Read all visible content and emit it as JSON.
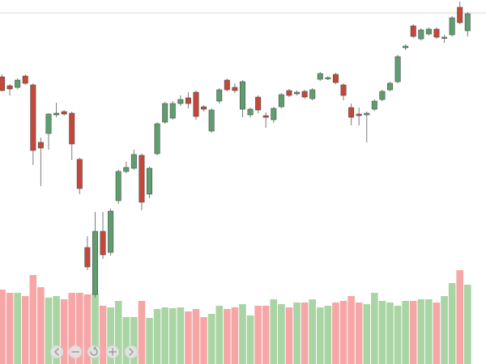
{
  "chart_data": {
    "type": "candlestick",
    "open": [
      355,
      344,
      342,
      356,
      345,
      274,
      285,
      308,
      312,
      310,
      253,
      144,
      86,
      164,
      138,
      202,
      238,
      242,
      258,
      210,
      260,
      299,
      304,
      322,
      329,
      336,
      318,
      288,
      325,
      351,
      342,
      315,
      308,
      330,
      307,
      302,
      318,
      338,
      334,
      337,
      328,
      352,
      353,
      358,
      345,
      317,
      309,
      308,
      315,
      327,
      339,
      349,
      391,
      418,
      402,
      408,
      414,
      403,
      407,
      441,
      412
    ],
    "high": [
      358,
      346,
      353,
      358,
      347,
      280,
      310,
      323,
      314,
      312,
      255,
      158,
      188,
      188,
      192,
      240,
      250,
      265,
      260,
      244,
      299,
      324,
      325,
      332,
      336,
      338,
      320,
      316,
      341,
      353,
      347,
      351,
      317,
      332,
      311,
      318,
      335,
      340,
      338,
      339,
      341,
      361,
      356,
      360,
      347,
      322,
      317,
      312,
      327,
      339,
      349,
      382,
      395,
      420,
      415,
      416,
      416,
      407,
      430,
      448,
      435
    ],
    "low": [
      337,
      332,
      340,
      345,
      246,
      220,
      265,
      305,
      307,
      252,
      210,
      116,
      82,
      130,
      134,
      198,
      236,
      240,
      190,
      205,
      258,
      297,
      302,
      319,
      316,
      302,
      312,
      286,
      322,
      337,
      335,
      305,
      305,
      310,
      292,
      298,
      316,
      330,
      332,
      328,
      326,
      350,
      351,
      346,
      326,
      295,
      295,
      274,
      313,
      325,
      337,
      347,
      388,
      403,
      400,
      406,
      402,
      397,
      405,
      420,
      405
    ],
    "close": [
      338,
      340,
      351,
      347,
      264,
      267,
      309,
      310,
      309,
      272,
      217,
      120,
      164,
      135,
      189,
      238,
      243,
      259,
      200,
      242,
      297,
      322,
      322,
      327,
      322,
      306,
      315,
      314,
      339,
      339,
      338,
      349,
      315,
      314,
      305,
      316,
      333,
      332,
      336,
      330,
      339,
      359,
      354,
      348,
      332,
      305,
      307,
      310,
      325,
      337,
      347,
      380,
      393,
      405,
      413,
      414,
      404,
      404,
      428,
      422,
      433
    ],
    "volume": [
      92,
      88,
      88,
      84,
      110,
      95,
      82,
      84,
      80,
      88,
      88,
      86,
      87,
      72,
      70,
      78,
      58,
      58,
      78,
      57,
      68,
      70,
      69,
      70,
      65,
      68,
      58,
      62,
      72,
      68,
      70,
      74,
      60,
      72,
      72,
      80,
      74,
      70,
      76,
      76,
      80,
      70,
      72,
      76,
      78,
      84,
      76,
      74,
      88,
      78,
      76,
      72,
      78,
      78,
      80,
      80,
      76,
      84,
      100,
      116,
      98
    ],
    "up_color": "#5e9e6e",
    "down_color": "#c4473a",
    "volume_up_color": "#a9d4a3",
    "volume_down_color": "#f7a6a6",
    "ylim": [
      0,
      450
    ],
    "volume_ylim": [
      0,
      450
    ]
  }
}
